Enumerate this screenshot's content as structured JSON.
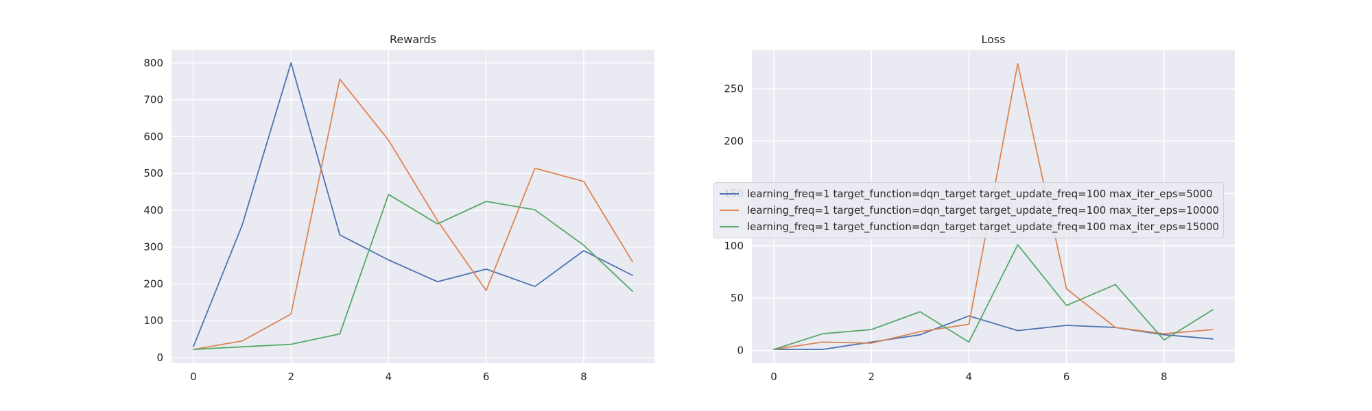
{
  "chart_data": [
    {
      "type": "line",
      "title": "Rewards",
      "xlabel": "",
      "ylabel": "",
      "x": [
        0,
        1,
        2,
        3,
        4,
        5,
        6,
        7,
        8,
        9
      ],
      "xlim": [
        -0.45,
        9.45
      ],
      "ylim": [
        -15,
        835
      ],
      "xticks": [
        0,
        2,
        4,
        6,
        8
      ],
      "yticks": [
        0,
        100,
        200,
        300,
        400,
        500,
        600,
        700,
        800
      ],
      "grid": true,
      "series": [
        {
          "values": [
            30,
            360,
            800,
            333,
            265,
            206,
            240,
            193,
            290,
            223
          ],
          "color": "#4c72b0"
        },
        {
          "values": [
            22,
            45,
            118,
            756,
            590,
            372,
            182,
            514,
            478,
            260
          ],
          "color": "#dd8452"
        },
        {
          "values": [
            22,
            29,
            36,
            64,
            443,
            363,
            424,
            401,
            305,
            180
          ],
          "color": "#55a868"
        }
      ]
    },
    {
      "type": "line",
      "title": "Loss",
      "xlabel": "",
      "ylabel": "",
      "x": [
        0,
        1,
        2,
        3,
        4,
        5,
        6,
        7,
        8,
        9
      ],
      "xlim": [
        -0.45,
        9.45
      ],
      "ylim": [
        -12,
        287
      ],
      "xticks": [
        0,
        2,
        4,
        6,
        8
      ],
      "yticks": [
        0,
        50,
        100,
        150,
        200,
        250
      ],
      "grid": true,
      "series": [
        {
          "values": [
            1,
            1,
            8,
            15,
            33,
            19,
            24,
            22,
            15,
            11
          ],
          "color": "#4c72b0"
        },
        {
          "values": [
            1,
            8,
            7,
            18,
            25,
            274,
            59,
            22,
            16,
            20
          ],
          "color": "#dd8452"
        },
        {
          "values": [
            1,
            16,
            20,
            37,
            8,
            101,
            43,
            63,
            10,
            39
          ],
          "color": "#55a868"
        }
      ]
    }
  ],
  "legend": {
    "placement": "center",
    "items": [
      {
        "label": "learning_freq=1 target_function=dqn_target target_update_freq=100 max_iter_eps=5000",
        "color": "#4c72b0"
      },
      {
        "label": "learning_freq=1 target_function=dqn_target target_update_freq=100 max_iter_eps=10000",
        "color": "#dd8452"
      },
      {
        "label": "learning_freq=1 target_function=dqn_target target_update_freq=100 max_iter_eps=15000",
        "color": "#55a868"
      }
    ]
  }
}
